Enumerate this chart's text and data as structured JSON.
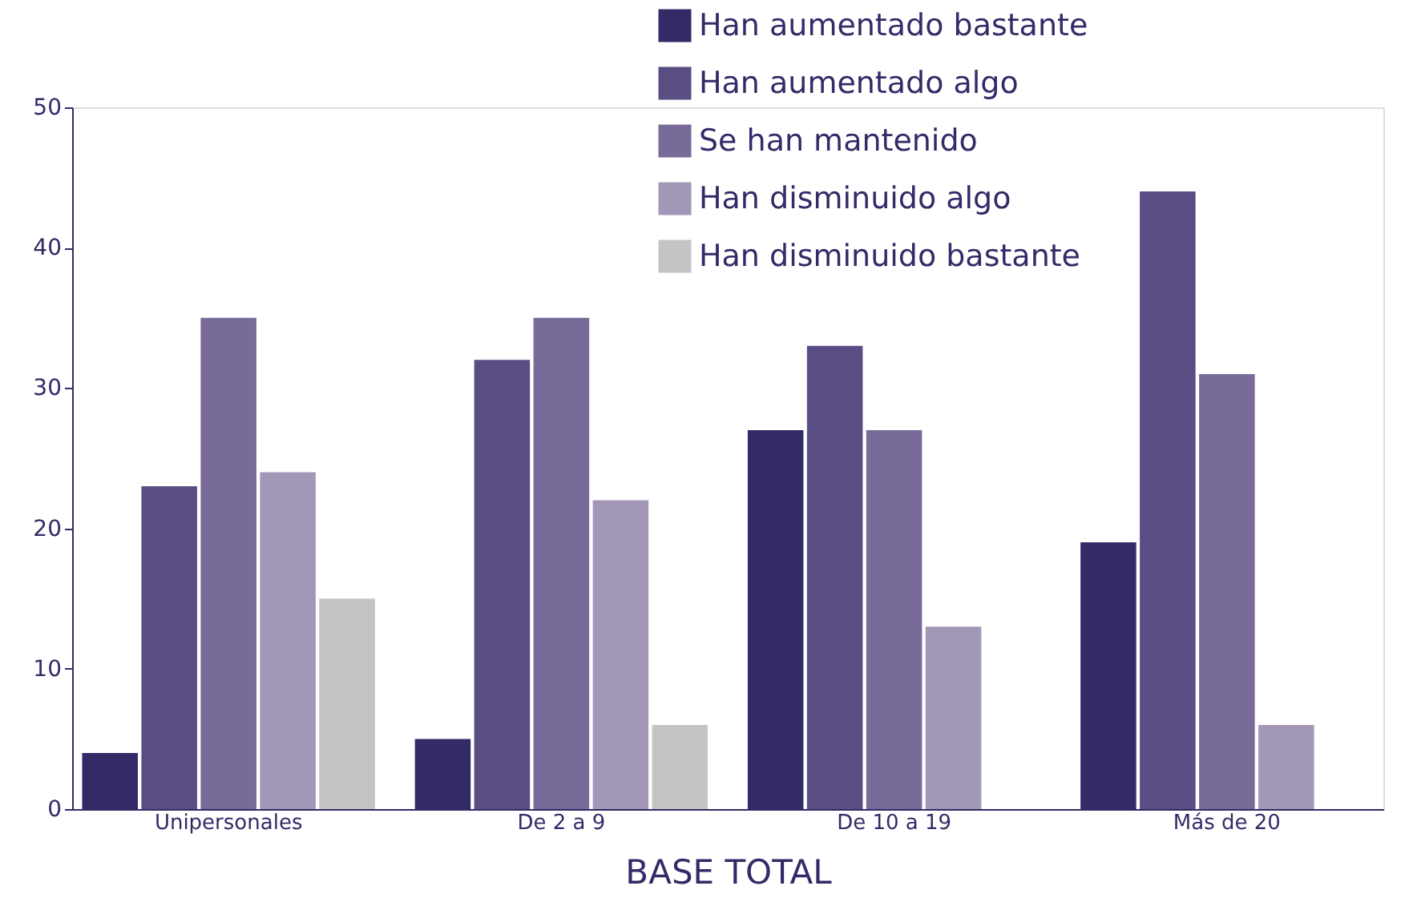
{
  "chart_data": {
    "type": "bar",
    "xlabel": "BASE TOTAL",
    "categories": [
      "Unipersonales",
      "De 2 a 9",
      "De 10 a 19",
      "Más de 20"
    ],
    "series": [
      {
        "name": "Han aumentado bastante",
        "color": "#332b67",
        "values": [
          4,
          5,
          27,
          19
        ]
      },
      {
        "name": "Han aumentado algo",
        "color": "#594d84",
        "values": [
          23,
          32,
          33,
          44
        ]
      },
      {
        "name": "Se han mantenido",
        "color": "#786b99",
        "values": [
          35,
          35,
          27,
          31
        ]
      },
      {
        "name": "Han disminuido algo",
        "color": "#a397b7",
        "values": [
          24,
          22,
          13,
          6
        ]
      },
      {
        "name": "Han disminuido bastante",
        "color": "#c4c4c6",
        "values": [
          15,
          6,
          null,
          null
        ]
      }
    ],
    "ylim": [
      0,
      50
    ],
    "yticks": [
      0,
      10,
      20,
      30,
      40,
      50
    ],
    "grid": false,
    "legend": "top right"
  }
}
